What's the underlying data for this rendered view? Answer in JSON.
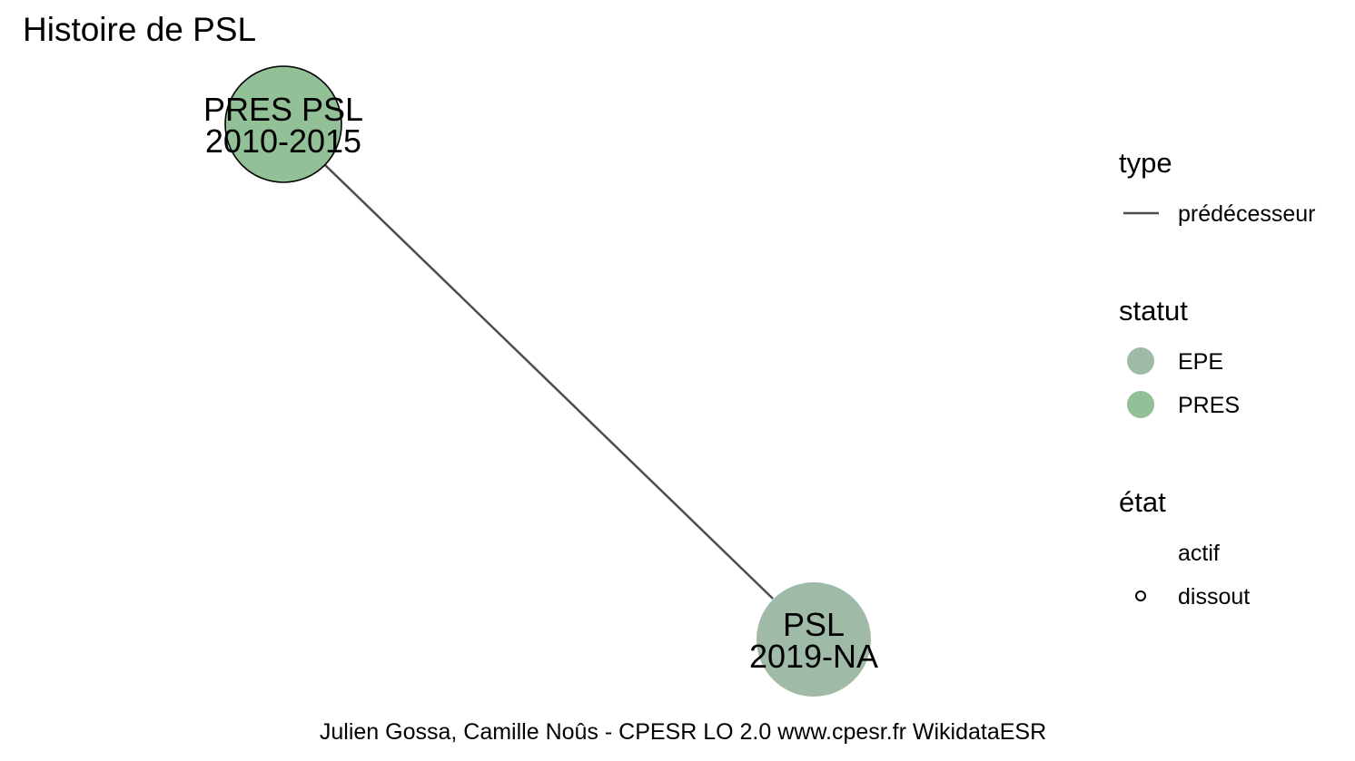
{
  "title": "Histoire de PSL",
  "caption": "Julien Gossa, Camille Noûs - CPESR LO 2.0 www.cpesr.fr WikidataESR",
  "colors": {
    "PRES": "#93c197",
    "EPE": "#a0baa8",
    "edge": "#4d4d4d",
    "outline": "#000000"
  },
  "nodes": [
    {
      "id": "pres-psl",
      "name": "PRES PSL",
      "period": "2010-2015",
      "statut": "PRES",
      "etat": "dissout"
    },
    {
      "id": "psl",
      "name": "PSL",
      "period": "2019-NA",
      "statut": "EPE",
      "etat": "actif"
    }
  ],
  "edges": [
    {
      "from": "pres-psl",
      "to": "psl",
      "type": "prédécesseur"
    }
  ],
  "legend": {
    "type": {
      "title": "type",
      "items": [
        {
          "label": "prédécesseur"
        }
      ]
    },
    "statut": {
      "title": "statut",
      "items": [
        {
          "label": "EPE",
          "key": "EPE"
        },
        {
          "label": "PRES",
          "key": "PRES"
        }
      ]
    },
    "etat": {
      "title": "état",
      "items": [
        {
          "label": "actif"
        },
        {
          "label": "dissout"
        }
      ]
    }
  }
}
